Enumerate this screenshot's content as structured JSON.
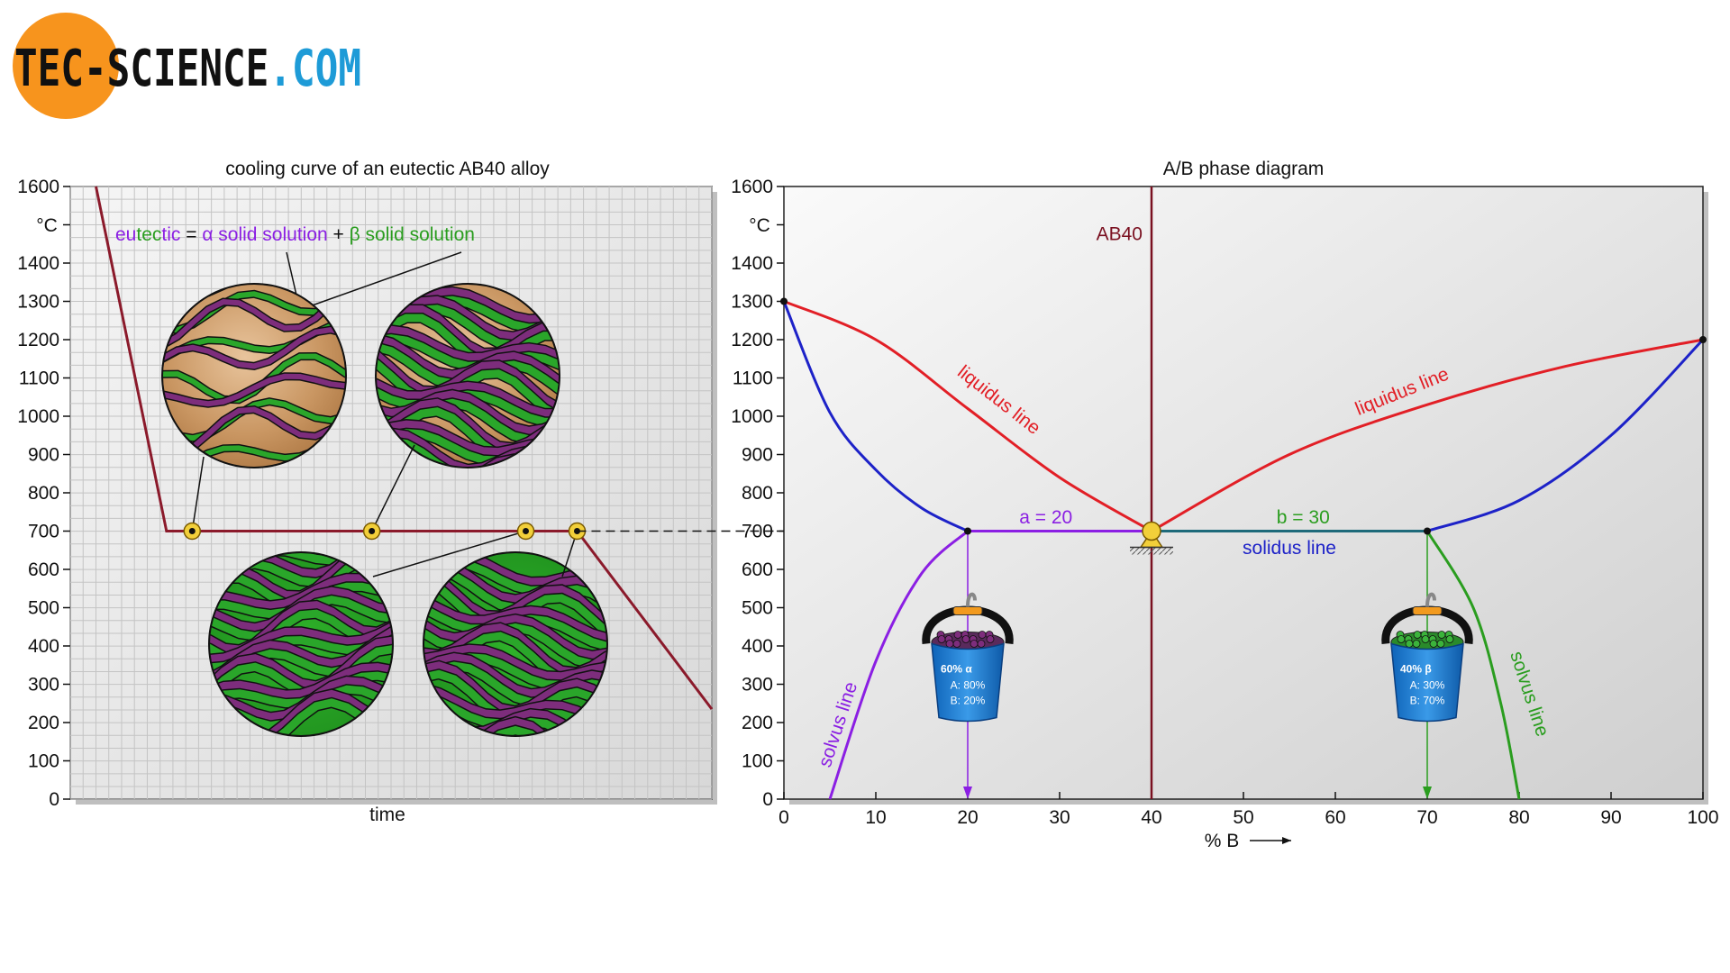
{
  "logo": {
    "part1": "TEC-SCIENCE",
    "part2": ".COM"
  },
  "colors": {
    "logo_orange": "#f7941d",
    "logo_blue": "#1e9bd7",
    "cooling_curve": "#8b1a2b",
    "liquidus": "#e21f26",
    "solidus": "#1d22c8",
    "alpha": "#8b1fe3",
    "beta": "#2a9d1f",
    "ab40": "#7a1020",
    "point_fill": "#f2cf3a"
  },
  "chart_data": [
    {
      "type": "line",
      "title": "cooling curve of an eutectic AB40 alloy",
      "xlabel": "time",
      "ylabel": "°C",
      "ylim": [
        0,
        1600
      ],
      "yticks": [
        "1600",
        "",
        "1400",
        "1300",
        "1200",
        "1100",
        "1000",
        "900",
        "800",
        "700",
        "600",
        "500",
        "400",
        "300",
        "200",
        "100",
        "0"
      ],
      "grid": true,
      "legend_text": {
        "e1": "eu",
        "e2": "tec",
        "e3": "tic",
        "eq": " = ",
        "alpha": "α solid solution",
        "plus": " + ",
        "beta": "β solid solution"
      },
      "series": [
        {
          "x": [
            0.04,
            0.15,
            0.79,
            1.0
          ],
          "y": [
            1600,
            700,
            700,
            235
          ]
        }
      ],
      "eutectic_hold_points_x": [
        0.19,
        0.47,
        0.71,
        0.79
      ],
      "micrographs": [
        "alpha-beta-lamellae",
        "alpha-beta-lamellae",
        "alpha-beta-lamellae",
        "alpha-beta-lamellae"
      ]
    },
    {
      "type": "line",
      "title": "A/B phase diagram",
      "xlabel": "% B",
      "ylabel": "°C",
      "xlim": [
        0,
        100
      ],
      "ylim": [
        0,
        1600
      ],
      "xticks": [
        "0",
        "10",
        "20",
        "30",
        "40",
        "50",
        "60",
        "70",
        "80",
        "90",
        "100"
      ],
      "yticks": [
        "1600",
        "",
        "1400",
        "1300",
        "1200",
        "1100",
        "1000",
        "900",
        "800",
        "700",
        "600",
        "500",
        "400",
        "300",
        "200",
        "100",
        "0"
      ],
      "series": [
        {
          "label": "liquidus line",
          "x": [
            0,
            10,
            20,
            30,
            40
          ],
          "y": [
            1300,
            1200,
            1020,
            840,
            700
          ]
        },
        {
          "label": "liquidus line",
          "x": [
            40,
            55,
            70,
            85,
            100
          ],
          "y": [
            700,
            900,
            1030,
            1130,
            1200
          ]
        },
        {
          "label": "solidus line",
          "x": [
            0,
            5,
            10,
            15,
            20,
            40,
            70,
            80,
            90,
            100
          ],
          "y": [
            1300,
            1010,
            860,
            760,
            700,
            700,
            700,
            780,
            950,
            1200
          ]
        },
        {
          "label": "solvus line",
          "x": [
            5,
            10,
            15,
            20
          ],
          "y": [
            0,
            360,
            590,
            700
          ]
        },
        {
          "label": "solvus line",
          "x": [
            70,
            75,
            78,
            80
          ],
          "y": [
            700,
            500,
            250,
            0
          ]
        }
      ],
      "annotations": {
        "ab40": "AB40",
        "a": "a = 20",
        "b": "b = 30",
        "solidus": "solidus line",
        "liquidus_left": "liquidus line",
        "liquidus_right": "liquidus line",
        "solvus_left": "solvus line",
        "solvus_right": "solvus line"
      },
      "buckets": [
        {
          "title": "60% α",
          "line1": "A: 80%",
          "line2": "B: 20%",
          "x": 20
        },
        {
          "title": "40% β",
          "line1": "A: 30%",
          "line2": "B: 70%",
          "x": 70
        }
      ]
    }
  ]
}
